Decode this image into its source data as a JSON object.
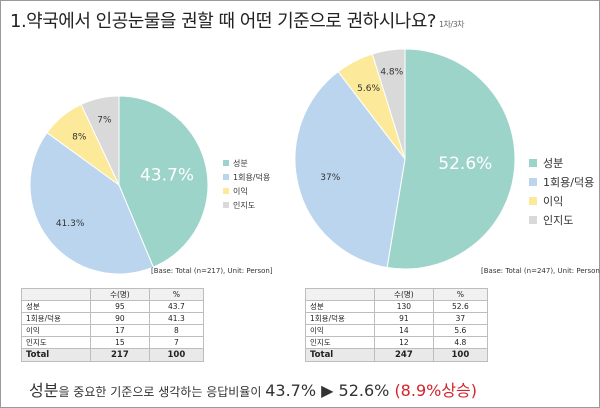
{
  "title": "1.약국에서 인공눈물을 권할 때 어떤 기준으로 권하시나요?",
  "title_note": "1차/3차",
  "colors": {
    "성분": "#9dd4c9",
    "1회용/덕용": "#bcd5ee",
    "이익": "#fce99a",
    "인지도": "#d9d9d9"
  },
  "chart_data": [
    {
      "type": "pie",
      "categories": [
        "성분",
        "1회용/덕용",
        "이익",
        "인지도"
      ],
      "values": [
        43.7,
        41.3,
        8,
        7
      ],
      "labels": [
        "43.7%",
        "41.3%",
        "8%",
        "7%"
      ],
      "base_note": "[Base: Total (n=217), Unit: Person]",
      "table": {
        "headers": [
          "",
          "수(명)",
          "%"
        ],
        "rows": [
          [
            "성분",
            "95",
            "43.7"
          ],
          [
            "1회용/덕용",
            "90",
            "41.3"
          ],
          [
            "이익",
            "17",
            "8"
          ],
          [
            "인지도",
            "15",
            "7"
          ]
        ],
        "total": [
          "Total",
          "217",
          "100"
        ]
      }
    },
    {
      "type": "pie",
      "categories": [
        "성분",
        "1회용/덕용",
        "이익",
        "인지도"
      ],
      "values": [
        52.6,
        37,
        5.6,
        4.8
      ],
      "labels": [
        "52.6%",
        "37%",
        "5.6%",
        "4.8%"
      ],
      "base_note": "[Base: Total (n=247), Unit: Person]",
      "table": {
        "headers": [
          "",
          "수(명)",
          "%"
        ],
        "rows": [
          [
            "성분",
            "130",
            "52.6"
          ],
          [
            "1회용/덕용",
            "91",
            "37"
          ],
          [
            "이익",
            "14",
            "5.6"
          ],
          [
            "인지도",
            "12",
            "4.8"
          ]
        ],
        "total": [
          "Total",
          "247",
          "100"
        ]
      }
    }
  ],
  "legend_left": [
    "성분",
    "1회용/덕용",
    "이익",
    "인지도"
  ],
  "legend_right": [
    "성분",
    "1회용/덕용",
    "이익",
    "인지도"
  ],
  "bottom": {
    "part1": "성분",
    "part2": "을 중요한 기준으로 생각하는 응답비율이 ",
    "part3": "43.7% ▶ 52.6% ",
    "part4": "(8.9%상승)"
  }
}
